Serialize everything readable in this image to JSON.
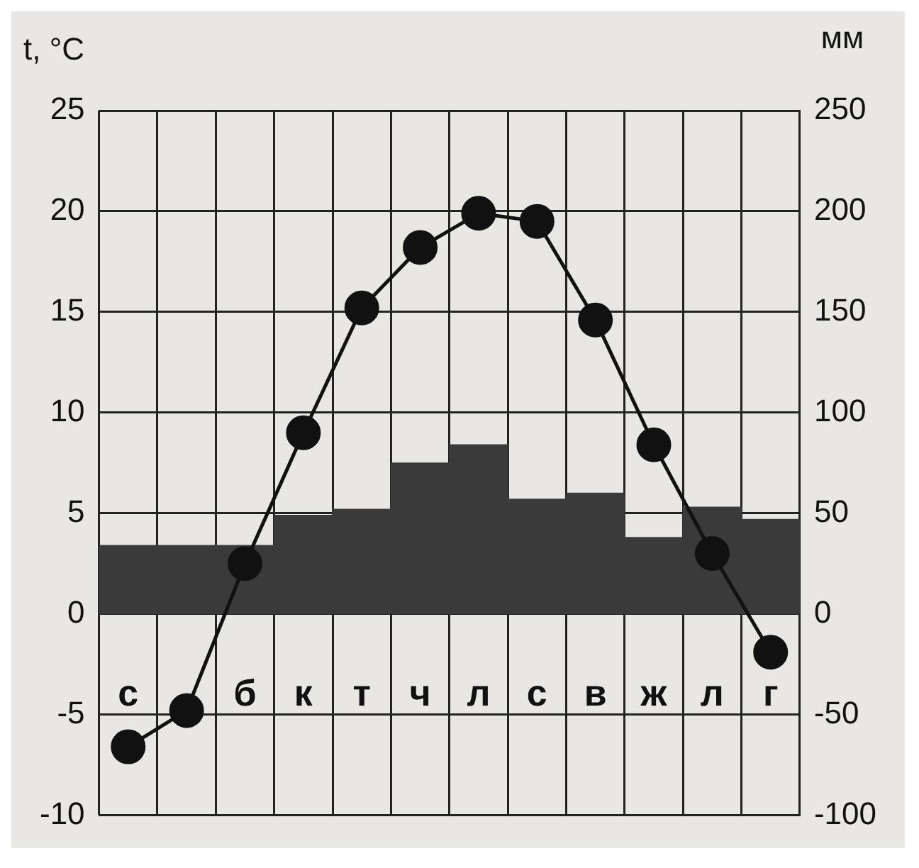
{
  "chart_data": {
    "type": "bar",
    "ylabel": "t, °C",
    "y2label": "мм",
    "categories": [
      "с",
      null,
      "б",
      "к",
      "т",
      "ч",
      "л",
      "с",
      "в",
      "ж",
      "л",
      "г"
    ],
    "series": [
      {
        "axis": "y2",
        "color": "#3a3a3a",
        "values": [
          34,
          34,
          34,
          49,
          52,
          75,
          84,
          57,
          60,
          38,
          53,
          47
        ]
      },
      {
        "type": "line",
        "axis": "y",
        "color": "#111111",
        "values": [
          -6.6,
          -4.8,
          2.5,
          9.0,
          15.2,
          18.2,
          19.9,
          19.5,
          14.6,
          8.4,
          3,
          -1.9
        ]
      }
    ],
    "ylim": [
      -10,
      25
    ],
    "yticks": [
      -10,
      -5,
      0,
      5,
      10,
      15,
      20,
      25
    ],
    "y2lim": [
      -100,
      250
    ],
    "y2ticks": [
      -100,
      -50,
      0,
      50,
      100,
      150,
      200,
      250
    ],
    "grid": true,
    "marker": "circle",
    "line_style": "solid"
  }
}
